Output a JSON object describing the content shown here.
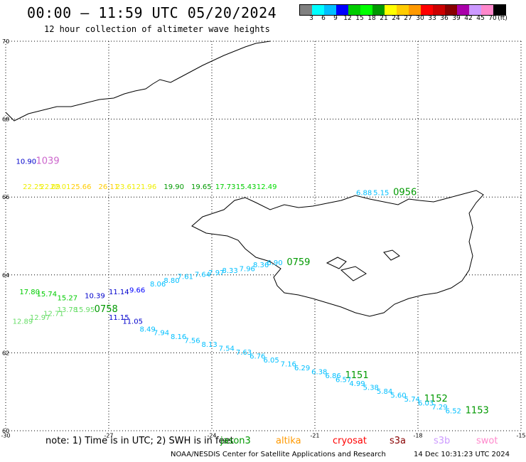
{
  "header": {
    "title": "00:00 – 11:59 UTC 05/20/2024",
    "subtitle": "12 hour collection of altimeter wave heights"
  },
  "scale": {
    "unit": "(ft)",
    "colors": [
      "#808080",
      "#00ffff",
      "#00bfff",
      "#0000ff",
      "#00cc00",
      "#00ff00",
      "#009900",
      "#ffff00",
      "#ffcc00",
      "#ff9900",
      "#ff0000",
      "#cc0000",
      "#880000",
      "#aa00aa",
      "#cc99ff",
      "#ff88cc",
      "#000000"
    ],
    "labels": [
      "3",
      "6",
      "9",
      "12",
      "15",
      "18",
      "21",
      "24",
      "27",
      "30",
      "33",
      "36",
      "39",
      "42",
      "45",
      "70"
    ]
  },
  "axes": {
    "lon_ticks": [
      "-30",
      "-27",
      "-24",
      "-21",
      "-18",
      "-15"
    ],
    "lat_ticks": [
      "70",
      "68",
      "66",
      "64",
      "62",
      "60"
    ]
  },
  "tracks": [
    {
      "time": "1039",
      "color": "#cc66cc",
      "points": [
        {
          "v": "10.90",
          "c": "#0000cc",
          "lon": -29.7,
          "lat": 66.85
        }
      ]
    },
    {
      "time": "0956",
      "color": "#009900",
      "points": [
        {
          "v": "22.25",
          "c": "#eeee00",
          "lon": -29.5,
          "lat": 66.2
        },
        {
          "v": "22.09",
          "c": "#eeee00",
          "lon": -29.0,
          "lat": 66.2
        },
        {
          "v": "22.01",
          "c": "#eeee00",
          "lon": -28.7,
          "lat": 66.2
        },
        {
          "v": "25.66",
          "c": "#ffcc00",
          "lon": -28.1,
          "lat": 66.2
        },
        {
          "v": "26.11",
          "c": "#ffcc00",
          "lon": -27.3,
          "lat": 66.2
        },
        {
          "v": "23.61",
          "c": "#eeee00",
          "lon": -26.8,
          "lat": 66.2
        },
        {
          "v": "21.96",
          "c": "#eeee00",
          "lon": -26.2,
          "lat": 66.2
        },
        {
          "v": "19.90",
          "c": "#009900",
          "lon": -25.4,
          "lat": 66.2
        },
        {
          "v": "19.65",
          "c": "#009900",
          "lon": -24.6,
          "lat": 66.2
        },
        {
          "v": "17.73",
          "c": "#00cc00",
          "lon": -23.9,
          "lat": 66.2
        },
        {
          "v": "15.43",
          "c": "#00cc00",
          "lon": -23.3,
          "lat": 66.2
        },
        {
          "v": "12.49",
          "c": "#00dd00",
          "lon": -22.7,
          "lat": 66.2
        },
        {
          "v": "6.88",
          "c": "#00bfff",
          "lon": -19.8,
          "lat": 66.05
        },
        {
          "v": "5.15",
          "c": "#00bfff",
          "lon": -19.3,
          "lat": 66.05
        }
      ]
    },
    {
      "time": "0759",
      "color": "#009900",
      "points": [
        {
          "v": "17.80",
          "c": "#00cc00",
          "lon": -29.6,
          "lat": 63.5
        },
        {
          "v": "15.74",
          "c": "#00cc00",
          "lon": -29.1,
          "lat": 63.45
        },
        {
          "v": "15.27",
          "c": "#00cc00",
          "lon": -28.5,
          "lat": 63.35
        },
        {
          "v": "10.39",
          "c": "#0000cc",
          "lon": -27.7,
          "lat": 63.4
        },
        {
          "v": "11.14",
          "c": "#0000cc",
          "lon": -27.0,
          "lat": 63.5
        },
        {
          "v": "9.66",
          "c": "#0000ff",
          "lon": -26.4,
          "lat": 63.55
        },
        {
          "v": "8.06",
          "c": "#00bfff",
          "lon": -25.8,
          "lat": 63.7
        },
        {
          "v": "8.80",
          "c": "#00bfff",
          "lon": -25.4,
          "lat": 63.8
        },
        {
          "v": "7.61",
          "c": "#00bfff",
          "lon": -25.0,
          "lat": 63.9
        },
        {
          "v": "7.64",
          "c": "#00bfff",
          "lon": -24.5,
          "lat": 63.95
        },
        {
          "v": "7.97",
          "c": "#00bfff",
          "lon": -24.1,
          "lat": 64.0
        },
        {
          "v": "8.33",
          "c": "#00bfff",
          "lon": -23.7,
          "lat": 64.05
        },
        {
          "v": "7.96",
          "c": "#00bfff",
          "lon": -23.2,
          "lat": 64.1
        },
        {
          "v": "8.36",
          "c": "#00bfff",
          "lon": -22.8,
          "lat": 64.2
        },
        {
          "v": "6.90",
          "c": "#00bfff",
          "lon": -22.4,
          "lat": 64.25
        }
      ]
    },
    {
      "time": "0758",
      "color": "#009900",
      "points": [
        {
          "v": "12.89",
          "c": "#66dd66",
          "lon": -29.8,
          "lat": 62.75
        },
        {
          "v": "12.97",
          "c": "#66dd66",
          "lon": -29.3,
          "lat": 62.85
        },
        {
          "v": "12.71",
          "c": "#66dd66",
          "lon": -28.9,
          "lat": 62.95
        },
        {
          "v": "13.78",
          "c": "#66dd66",
          "lon": -28.5,
          "lat": 63.05
        },
        {
          "v": "15.95",
          "c": "#66dd66",
          "lon": -28.0,
          "lat": 63.05
        }
      ]
    },
    {
      "time": "1151",
      "color": "#009900",
      "points": [
        {
          "v": "11.15",
          "c": "#0000cc",
          "lon": -27.0,
          "lat": 62.85
        },
        {
          "v": "11.05",
          "c": "#0000cc",
          "lon": -26.6,
          "lat": 62.75
        },
        {
          "v": "8.49",
          "c": "#00bfff",
          "lon": -26.1,
          "lat": 62.55
        },
        {
          "v": "7.94",
          "c": "#00bfff",
          "lon": -25.7,
          "lat": 62.45
        },
        {
          "v": "8.16",
          "c": "#00bfff",
          "lon": -25.2,
          "lat": 62.35
        },
        {
          "v": "7.56",
          "c": "#00bfff",
          "lon": -24.8,
          "lat": 62.25
        },
        {
          "v": "8.13",
          "c": "#00bfff",
          "lon": -24.3,
          "lat": 62.15
        },
        {
          "v": "7.54",
          "c": "#00bfff",
          "lon": -23.8,
          "lat": 62.05
        },
        {
          "v": "7.63",
          "c": "#00bfff",
          "lon": -23.3,
          "lat": 61.95
        },
        {
          "v": "6.76",
          "c": "#00bfff",
          "lon": -22.9,
          "lat": 61.85
        },
        {
          "v": "6.05",
          "c": "#00bfff",
          "lon": -22.5,
          "lat": 61.75
        },
        {
          "v": "7.16",
          "c": "#00bfff",
          "lon": -22.0,
          "lat": 61.65
        },
        {
          "v": "6.29",
          "c": "#00bfff",
          "lon": -21.6,
          "lat": 61.55
        },
        {
          "v": "6.38",
          "c": "#00bfff",
          "lon": -21.1,
          "lat": 61.45
        },
        {
          "v": "6.86",
          "c": "#00bfff",
          "lon": -20.7,
          "lat": 61.35
        }
      ]
    },
    {
      "time": "1152",
      "color": "#009900",
      "points": [
        {
          "v": "6.57",
          "c": "#00bfff",
          "lon": -20.4,
          "lat": 61.25
        },
        {
          "v": "4.99",
          "c": "#00bfff",
          "lon": -20.0,
          "lat": 61.15
        },
        {
          "v": "5.38",
          "c": "#00bfff",
          "lon": -19.6,
          "lat": 61.05
        },
        {
          "v": "5.84",
          "c": "#00bfff",
          "lon": -19.2,
          "lat": 60.95
        },
        {
          "v": "5.60",
          "c": "#00bfff",
          "lon": -18.8,
          "lat": 60.85
        },
        {
          "v": "5.74",
          "c": "#00bfff",
          "lon": -18.4,
          "lat": 60.75
        }
      ]
    },
    {
      "time": "1153",
      "color": "#009900",
      "points": [
        {
          "v": "6.03",
          "c": "#00bfff",
          "lon": -18.0,
          "lat": 60.65
        },
        {
          "v": "7.29",
          "c": "#00bfff",
          "lon": -17.6,
          "lat": 60.55
        },
        {
          "v": "6.52",
          "c": "#00bfff",
          "lon": -17.2,
          "lat": 60.45
        }
      ]
    }
  ],
  "footer": {
    "note": "note:  1) Time is in UTC; 2) SWH is in feet",
    "satellites": [
      {
        "name": "jason3",
        "color": "#009900"
      },
      {
        "name": "altika",
        "color": "#ff9900"
      },
      {
        "name": "cryosat",
        "color": "#ff0000"
      },
      {
        "name": "s3a",
        "color": "#880000"
      },
      {
        "name": "s3b",
        "color": "#cc99ff"
      },
      {
        "name": "swot",
        "color": "#ff88cc"
      }
    ],
    "credit": "NOAA/NESDIS Center for Satellite Applications and Research",
    "stamp": "14 Dec 10:31:23 UTC 2024"
  }
}
